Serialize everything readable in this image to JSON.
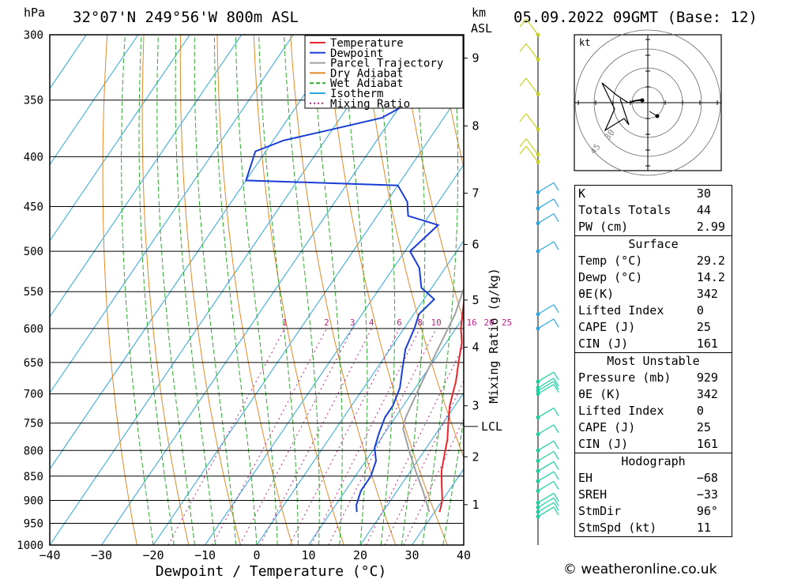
{
  "header": {
    "hpa_unit": "hPa",
    "location": "32°07'N  249°56'W  800m  ASL",
    "km_unit": "km",
    "asl_unit": "ASL",
    "datetime": "05.09.2022  09GMT  (Base: 12)"
  },
  "legend": [
    "Temperature",
    "Dewpoint",
    "Parcel Trajectory",
    "Dry Adiabat",
    "Wet Adiabat",
    "Isotherm",
    "Mixing Ratio"
  ],
  "colors": {
    "temperature": "#e8262a",
    "dewpoint": "#1a3fd6",
    "parcel": "#a0a0a0",
    "dry_adiabat": "#e08a28",
    "wet_adiabat": "#2eaa2e",
    "isotherm": "#2aa6e0",
    "mixing_ratio": "#c0208a"
  },
  "chart_data": {
    "type": "line",
    "title": "32°07'N  249°56'W  800m  ASL",
    "xlabel": "Dewpoint / Temperature (°C)",
    "ylabel": "hPa",
    "xlim": [
      -40,
      40
    ],
    "ylim": [
      1000,
      300
    ],
    "x_ticks": [
      "−40",
      "−30",
      "−20",
      "−10",
      "0",
      "10",
      "20",
      "30",
      "40"
    ],
    "pressure_levels": [
      300,
      350,
      400,
      450,
      500,
      550,
      600,
      650,
      700,
      750,
      800,
      850,
      900,
      950,
      1000
    ],
    "km_ticks": [
      {
        "label": "9",
        "p": 317
      },
      {
        "label": "8",
        "p": 372
      },
      {
        "label": "7",
        "p": 436
      },
      {
        "label": "6",
        "p": 492
      },
      {
        "label": "5",
        "p": 561
      },
      {
        "label": "4",
        "p": 627
      },
      {
        "label": "3",
        "p": 720
      },
      {
        "label": "2",
        "p": 812
      },
      {
        "label": "1",
        "p": 909
      }
    ],
    "lcl": {
      "label": "LCL",
      "p": 756
    },
    "mixing_ratio_axis_label": "Mixing Ratio (g/kg)",
    "mixing_ratio_labels": [
      "1",
      "2",
      "3",
      "4",
      "6",
      "8",
      "10",
      "16",
      "20",
      "25"
    ],
    "series": [
      {
        "name": "Temperature",
        "points": [
          [
            31,
            925
          ],
          [
            30,
            900
          ],
          [
            28,
            870
          ],
          [
            26,
            840
          ],
          [
            25,
            820
          ],
          [
            24,
            800
          ],
          [
            23,
            780
          ],
          [
            21,
            750
          ],
          [
            19,
            720
          ],
          [
            18,
            700
          ],
          [
            17,
            680
          ],
          [
            15,
            650
          ],
          [
            13,
            620
          ],
          [
            11,
            600
          ],
          [
            9,
            575
          ],
          [
            7,
            550
          ],
          [
            5,
            520
          ],
          [
            4,
            500
          ],
          [
            1,
            470
          ],
          [
            -2,
            440
          ],
          [
            -4,
            420
          ],
          [
            -7,
            400
          ],
          [
            -11,
            375
          ],
          [
            -14,
            350
          ],
          [
            -18,
            325
          ],
          [
            -22,
            300
          ]
        ]
      },
      {
        "name": "Dewpoint",
        "points": [
          [
            15,
            925
          ],
          [
            14,
            910
          ],
          [
            13,
            880
          ],
          [
            13,
            850
          ],
          [
            12,
            820
          ],
          [
            10,
            795
          ],
          [
            9,
            770
          ],
          [
            8,
            740
          ],
          [
            8,
            720
          ],
          [
            7,
            690
          ],
          [
            5,
            660
          ],
          [
            3,
            630
          ],
          [
            2,
            600
          ],
          [
            1,
            580
          ],
          [
            2,
            560
          ],
          [
            -2,
            545
          ],
          [
            -5,
            520
          ],
          [
            -9,
            500
          ],
          [
            -7,
            470
          ],
          [
            -14,
            460
          ],
          [
            -16,
            445
          ],
          [
            -20,
            428
          ],
          [
            -50,
            423
          ],
          [
            -52,
            395
          ],
          [
            -48,
            385
          ],
          [
            -40,
            375
          ],
          [
            -32,
            365
          ],
          [
            -28,
            350
          ],
          [
            -25,
            335
          ],
          [
            -27,
            320
          ],
          [
            -30,
            302
          ]
        ]
      },
      {
        "name": "Parcel Trajectory",
        "points": [
          [
            29,
            925
          ],
          [
            25,
            880
          ],
          [
            21,
            840
          ],
          [
            17,
            800
          ],
          [
            13,
            760
          ],
          [
            12,
            740
          ],
          [
            11,
            700
          ],
          [
            10,
            660
          ],
          [
            9,
            620
          ],
          [
            8,
            580
          ],
          [
            6,
            540
          ],
          [
            4,
            500
          ],
          [
            0,
            460
          ],
          [
            -3,
            430
          ],
          [
            -7,
            400
          ],
          [
            -12,
            370
          ],
          [
            -16,
            345
          ],
          [
            -20,
            320
          ],
          [
            -23,
            300
          ]
        ]
      }
    ]
  },
  "hodograph": {
    "unit": "kt",
    "ring_labels": [
      "30",
      "45"
    ]
  },
  "indices": {
    "k_label": "K",
    "k_value": "30",
    "tt_label": "Totals Totals",
    "tt_value": "44",
    "pw_label": "PW (cm)",
    "pw_value": "2.99",
    "surface": {
      "title": "Surface",
      "temp_label": "Temp (°C)",
      "temp_value": "29.2",
      "dewp_label": "Dewp (°C)",
      "dewp_value": "14.2",
      "theta_label": "θE(K)",
      "theta_value": "342",
      "li_label": "Lifted Index",
      "li_value": "0",
      "cape_label": "CAPE (J)",
      "cape_value": "25",
      "cin_label": "CIN (J)",
      "cin_value": "161"
    },
    "most_unstable": {
      "title": "Most Unstable",
      "pressure_label": "Pressure (mb)",
      "pressure_value": "929",
      "theta_label": "θE (K)",
      "theta_value": "342",
      "li_label": "Lifted Index",
      "li_value": "0",
      "cape_label": "CAPE (J)",
      "cape_value": "25",
      "cin_label": "CIN (J)",
      "cin_value": "161"
    },
    "hodograph_block": {
      "title": "Hodograph",
      "eh_label": "EH",
      "eh_value": "−68",
      "sreh_label": "SREH",
      "sreh_value": "−33",
      "stmdir_label": "StmDir",
      "stmdir_value": "96°",
      "stmspd_label": "StmSpd (kt)",
      "stmspd_value": "11"
    }
  },
  "credit": "© weatheronline.co.uk"
}
